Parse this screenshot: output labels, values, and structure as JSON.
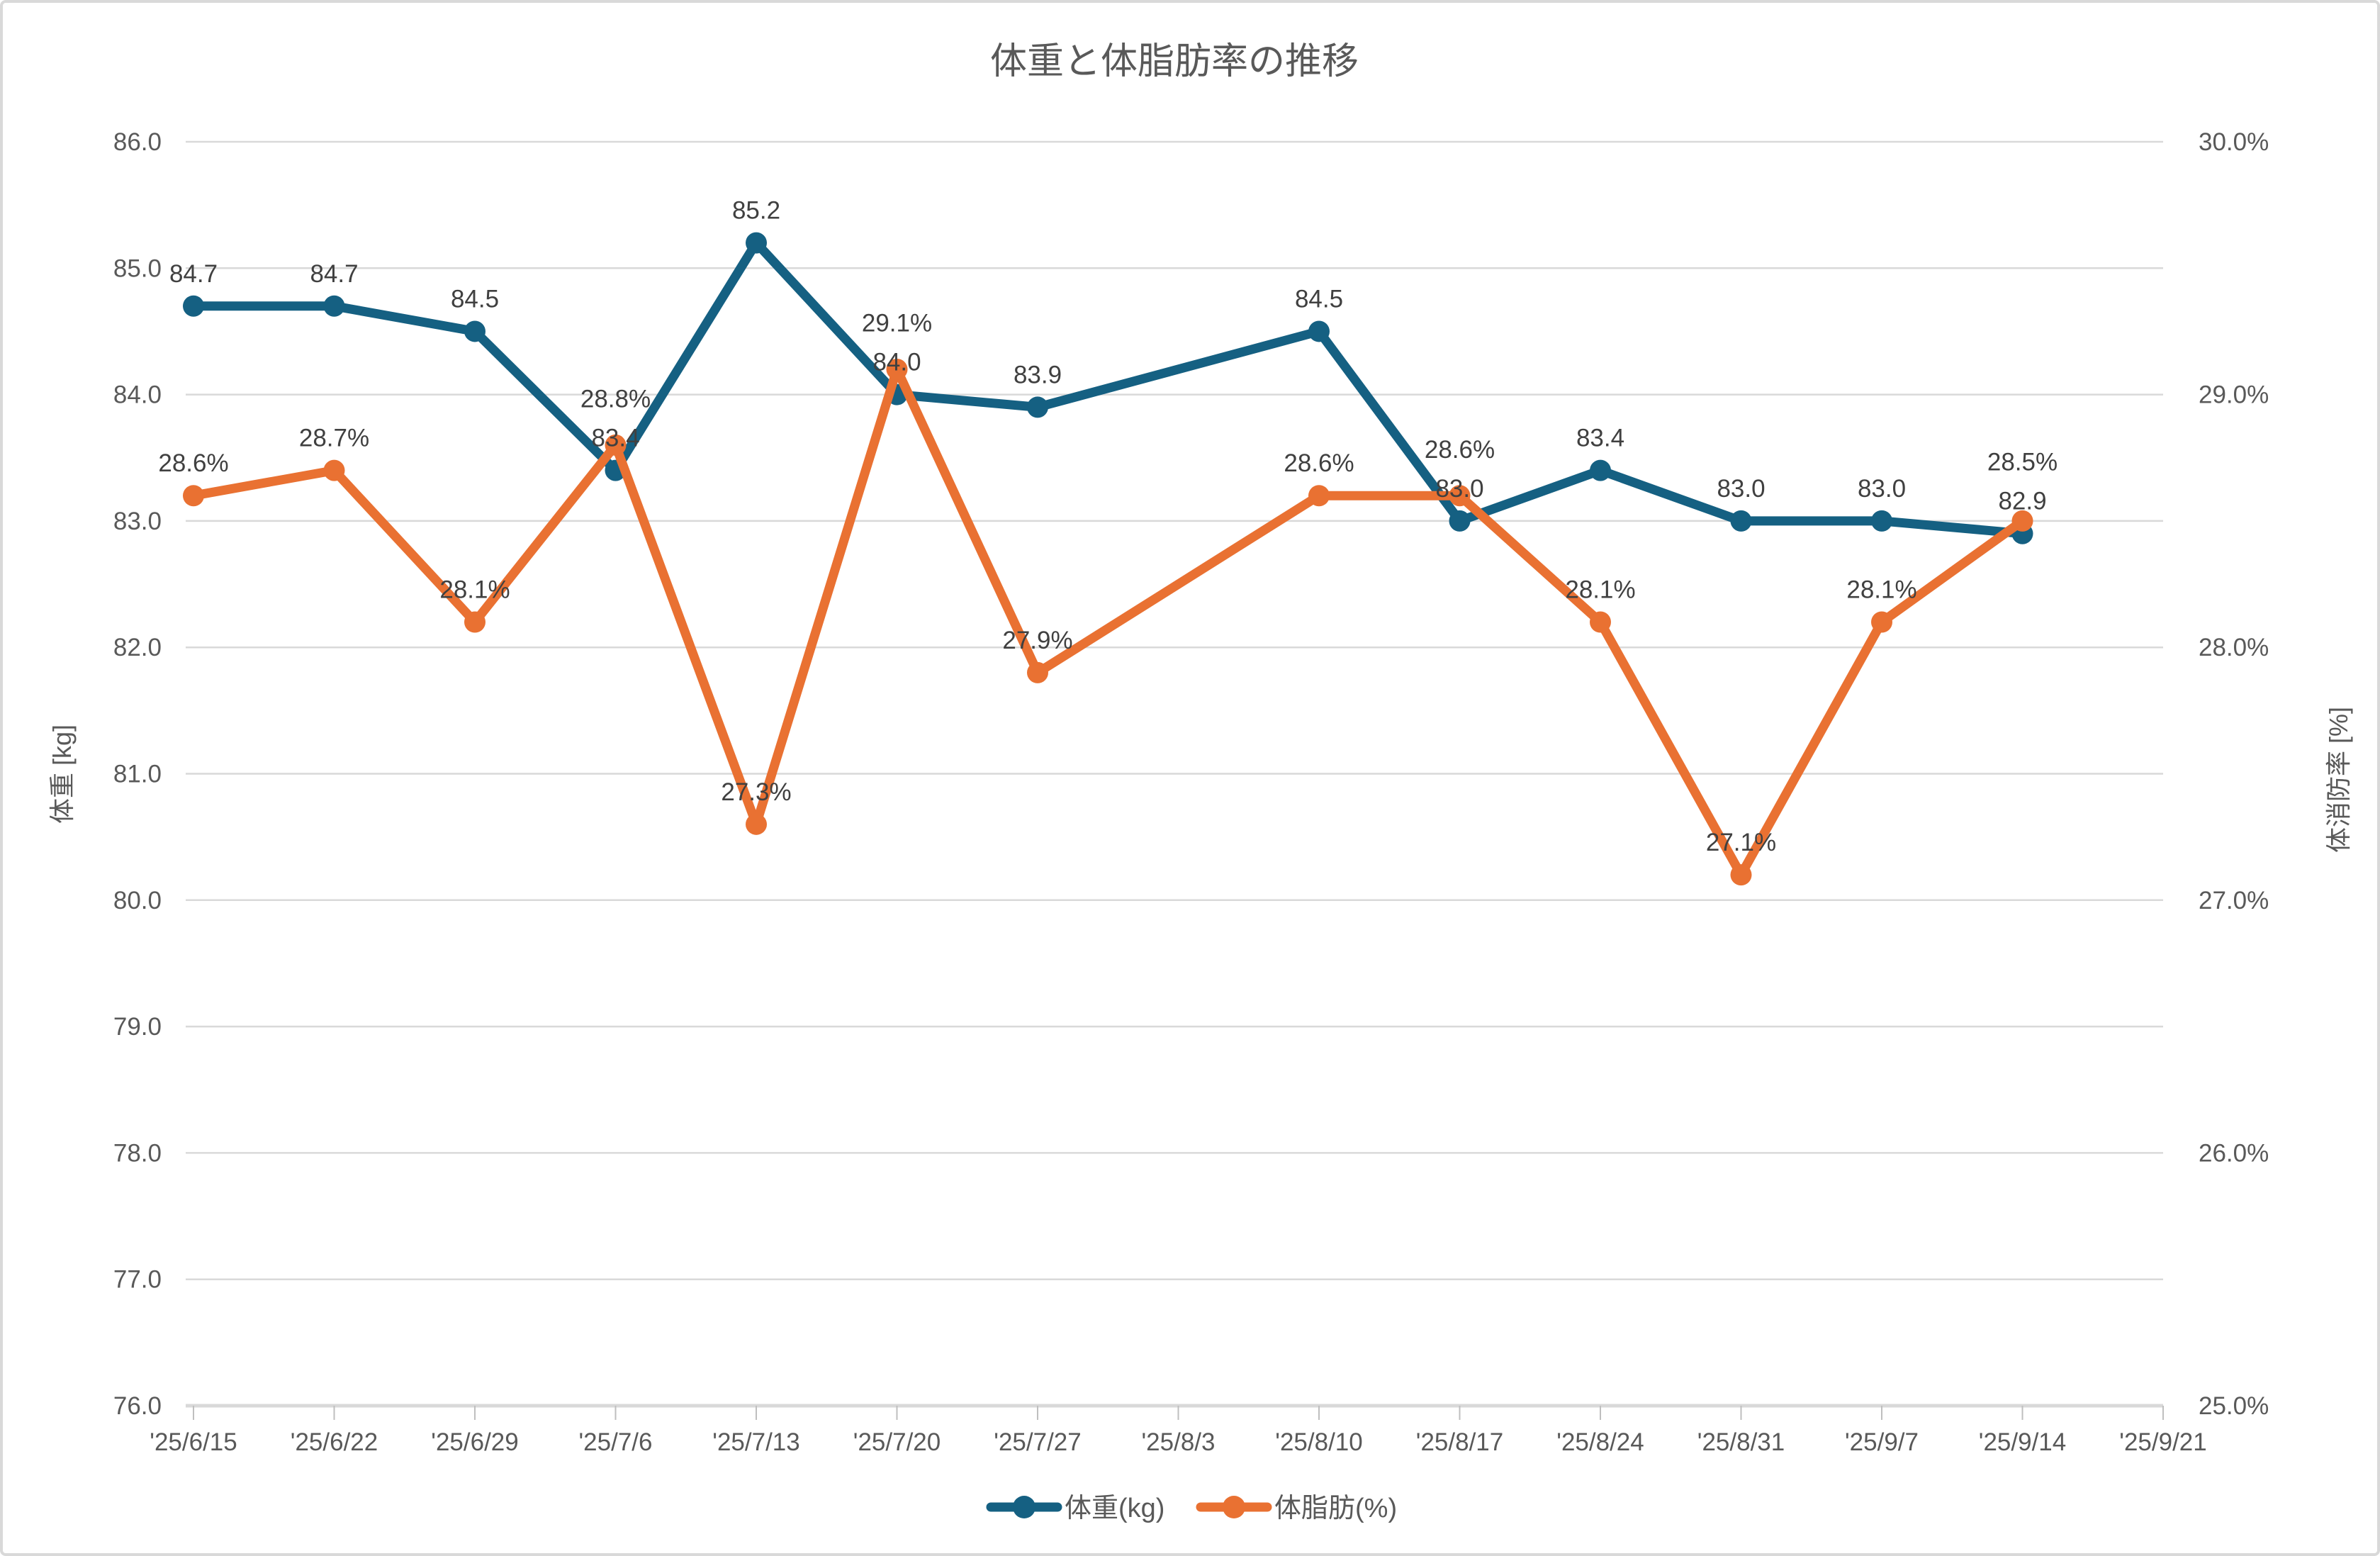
{
  "title": "体重と体脂肪率の推移",
  "colors": {
    "weight_series": "#156082",
    "bodyfat_series": "#E97132",
    "gridline": "#D9D9D9",
    "axis_line": "#D9D9D9",
    "tick_mark": "#BFBFBF",
    "tick_text": "#595959",
    "title_text": "#595959",
    "data_label_text": "#404040",
    "chart_border": "#D9D9D9",
    "background": "#FFFFFF"
  },
  "chart_data": {
    "type": "line",
    "title": "体重と体脂肪率の推移",
    "categories": [
      "'25/6/15",
      "'25/6/22",
      "'25/6/29",
      "'25/7/6",
      "'25/7/13",
      "'25/7/20",
      "'25/7/27",
      "'25/8/3",
      "'25/8/10",
      "'25/8/17",
      "'25/8/24",
      "'25/8/31",
      "'25/9/7",
      "'25/9/14",
      "'25/9/21"
    ],
    "series": [
      {
        "name": "体重(kg)",
        "axis": "left",
        "color": "#156082",
        "values": [
          84.7,
          84.7,
          84.5,
          83.4,
          85.2,
          84.0,
          83.9,
          null,
          84.5,
          83.0,
          83.4,
          83.0,
          83.0,
          82.9,
          null
        ],
        "labels": [
          "84.7",
          "84.7",
          "84.5",
          "83.4",
          "85.2",
          "84.0",
          "83.9",
          null,
          "84.5",
          "83.0",
          "83.4",
          "83.0",
          "83.0",
          "82.9",
          null
        ]
      },
      {
        "name": "体脂肪(%)",
        "axis": "right",
        "color": "#E97132",
        "values": [
          28.6,
          28.7,
          28.1,
          28.8,
          27.3,
          29.1,
          27.9,
          null,
          28.6,
          28.6,
          28.1,
          27.1,
          28.1,
          28.5,
          null
        ],
        "labels": [
          "28.6%",
          "28.7%",
          "28.1%",
          "28.8%",
          "27.3%",
          "29.1%",
          "27.9%",
          null,
          "28.6%",
          "28.6%",
          "28.1%",
          "27.1%",
          "28.1%",
          "28.5%",
          null
        ]
      }
    ],
    "left_axis": {
      "title": "体重 [kg]",
      "min": 76.0,
      "max": 86.0,
      "step": 1.0,
      "tick_labels": [
        "86.0",
        "85.0",
        "84.0",
        "83.0",
        "82.0",
        "81.0",
        "80.0",
        "79.0",
        "78.0",
        "77.0",
        "76.0"
      ]
    },
    "right_axis": {
      "title": "体消防率 [%]",
      "min": 25.0,
      "max": 30.0,
      "step": 1.0,
      "tick_labels": [
        "30.0%",
        "29.0%",
        "28.0%",
        "27.0%",
        "26.0%",
        "25.0%"
      ]
    },
    "legend": {
      "position": "bottom",
      "entries": [
        "体重(kg)",
        "体脂肪(%)"
      ]
    },
    "grid": true,
    "notes": "no data points at '25/8/3 and '25/9/21; line connects across the gap"
  }
}
